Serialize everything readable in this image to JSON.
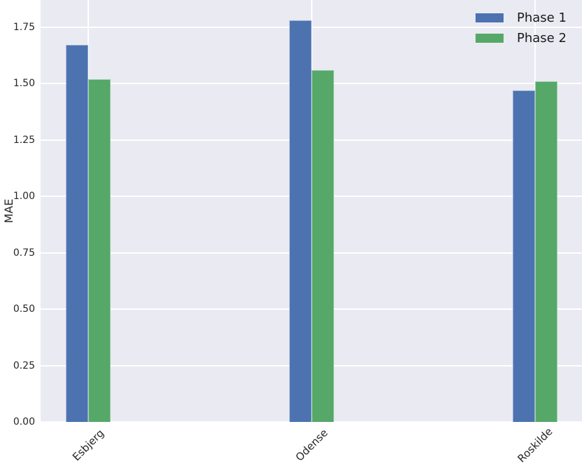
{
  "chart_data": {
    "type": "bar",
    "categories": [
      "Esbjerg",
      "Odense",
      "Roskilde"
    ],
    "series": [
      {
        "name": "Phase 1",
        "color": "#4C72B0",
        "values": [
          1.67,
          1.78,
          1.47
        ]
      },
      {
        "name": "Phase 2",
        "color": "#55A868",
        "values": [
          1.52,
          1.56,
          1.51
        ]
      }
    ],
    "title": "",
    "xlabel": "",
    "ylabel": "MAE",
    "ylim": [
      0,
      1.87
    ],
    "yticks": [
      0.0,
      0.25,
      0.5,
      0.75,
      1.0,
      1.25,
      1.5,
      1.75
    ],
    "ytick_decimals": 2,
    "grid": true,
    "legend_position": "upper right",
    "colors": {
      "plot_background": "#EAEAF2",
      "gridline": "#FFFFFF",
      "text": "#262626"
    }
  }
}
